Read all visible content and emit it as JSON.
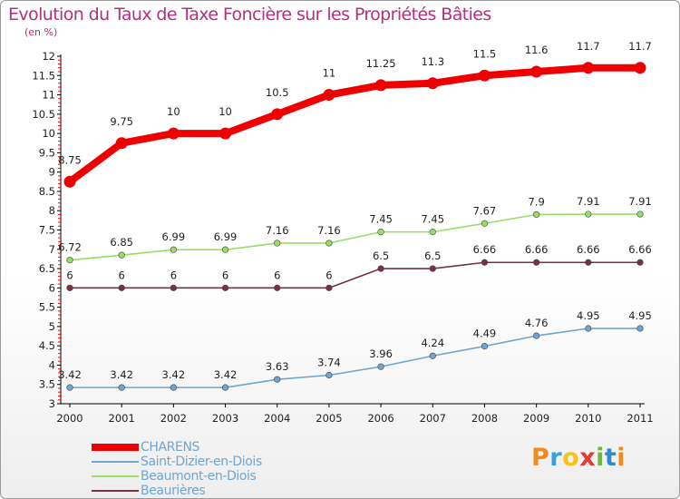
{
  "header": {
    "title": "Evolution du Taux de Taxe Foncière sur les Propriétés Bâties",
    "subtitle": "(en %)"
  },
  "colors": {
    "title": "#b5307a",
    "axis": "#000000",
    "charens": "#ee0000",
    "saint_dizier": "#6fa5cf",
    "beaumont": "#99dd66",
    "beaurieres": "#7a3040"
  },
  "brand": {
    "letters": [
      "P",
      "r",
      "o",
      "x",
      "i",
      "t",
      "i"
    ],
    "colors": [
      "#f08c1e",
      "#3aa0dc",
      "#f6c21b",
      "#e53a2f",
      "#6cbc3a",
      "#2e8bcf",
      "#f08c1e"
    ]
  },
  "chart_data": {
    "type": "line",
    "title": "Evolution du Taux de Taxe Foncière sur les Propriétés Bâties",
    "subtitle": "(en %)",
    "xlabel": "",
    "ylabel": "",
    "x": [
      "2000",
      "2001",
      "2002",
      "2003",
      "2004",
      "2005",
      "2006",
      "2007",
      "2008",
      "2009",
      "2010",
      "2011"
    ],
    "ylim": [
      3,
      12
    ],
    "y_ticks": [
      "3",
      "3.5",
      "4",
      "4.5",
      "5",
      "5.5",
      "6",
      "6.5",
      "7",
      "7.5",
      "8",
      "8.5",
      "9",
      "9.5",
      "10",
      "10.5",
      "11",
      "11.5",
      "12"
    ],
    "grid": false,
    "legend_position": "bottom-left",
    "series": [
      {
        "name": "CHARENS",
        "color": "#ee0000",
        "values": [
          8.75,
          9.75,
          10,
          10,
          10.5,
          11,
          11.25,
          11.3,
          11.5,
          11.6,
          11.7,
          11.7
        ],
        "labels": [
          "8.75",
          "9.75",
          "10",
          "10",
          "10.5",
          "11",
          "11.25",
          "11.3",
          "11.5",
          "11.6",
          "11.7",
          "11.7"
        ]
      },
      {
        "name": "Saint-Dizier-en-Diois",
        "color": "#6fa5cf",
        "values": [
          3.42,
          3.42,
          3.42,
          3.42,
          3.63,
          3.74,
          3.96,
          4.24,
          4.49,
          4.76,
          4.95,
          4.95
        ],
        "labels": [
          "3.42",
          "3.42",
          "3.42",
          "3.42",
          "3.63",
          "3.74",
          "3.96",
          "4.24",
          "4.49",
          "4.76",
          "4.95",
          "4.95"
        ]
      },
      {
        "name": "Beaumont-en-Diois",
        "color": "#99dd66",
        "values": [
          6.72,
          6.85,
          6.99,
          6.99,
          7.16,
          7.16,
          7.45,
          7.45,
          7.67,
          7.9,
          7.91,
          7.91
        ],
        "labels": [
          "6.72",
          "6.85",
          "6.99",
          "6.99",
          "7.16",
          "7.16",
          "7.45",
          "7.45",
          "7.67",
          "7.9",
          "7.91",
          "7.91"
        ]
      },
      {
        "name": "Beaurières",
        "color": "#7a3040",
        "values": [
          6,
          6,
          6,
          6,
          6,
          6,
          6.5,
          6.5,
          6.66,
          6.66,
          6.66,
          6.66
        ],
        "labels": [
          "6",
          "6",
          "6",
          "6",
          "6",
          "6",
          "6.5",
          "6.5",
          "6.66",
          "6.66",
          "6.66",
          "6.66"
        ]
      }
    ]
  }
}
